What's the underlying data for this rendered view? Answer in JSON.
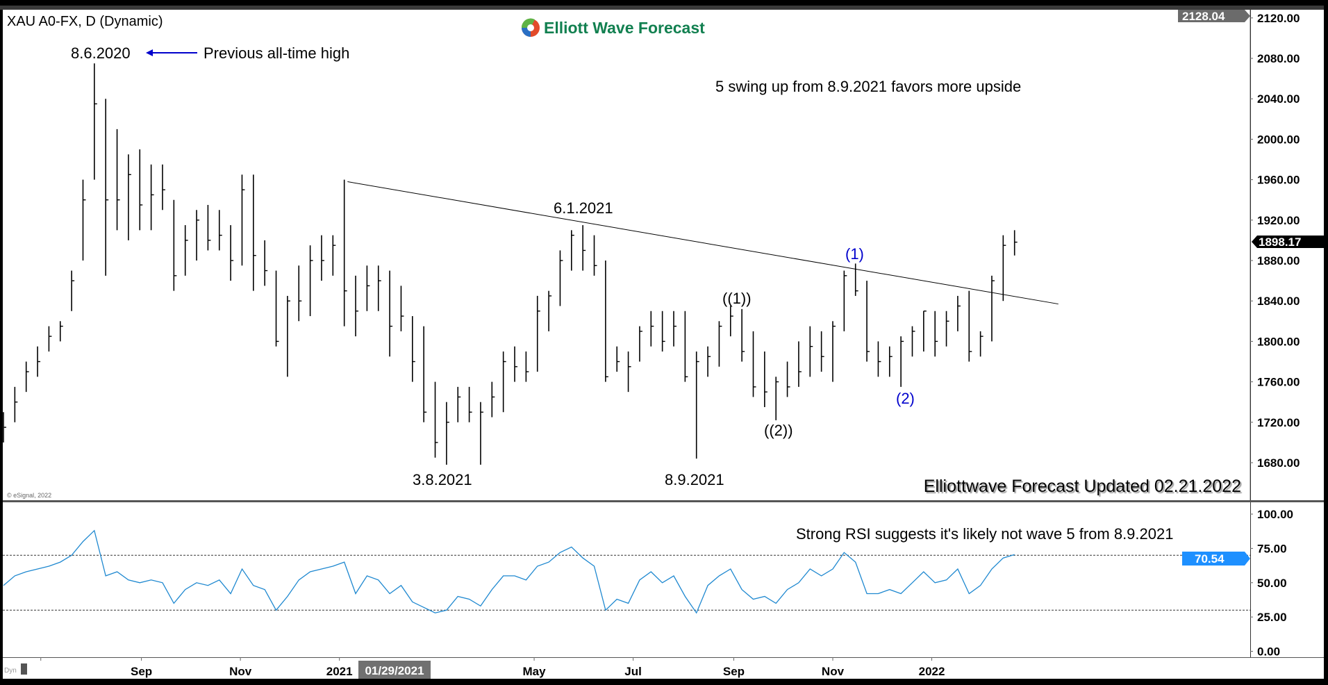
{
  "header": {
    "symbol_title": "XAU A0-FX, D (Dynamic)",
    "logo_text": "Elliott Wave Forecast",
    "copyright": "© eSignal, 2022",
    "corner_label": "Dyn"
  },
  "annotations": {
    "ath_date": "8.6.2020",
    "ath_note": "Previous all-time high",
    "swing_note": "5 swing up from 8.9.2021 favors more upside",
    "label_june": "6.1.2021",
    "label_w1_double": "((1))",
    "label_w1": "(1)",
    "label_w2_double": "((2))",
    "label_w2": "(2)",
    "label_march": "3.8.2021",
    "label_august": "8.9.2021",
    "updated": "Elliottwave Forecast Updated 02.21.2022",
    "rsi_note": "Strong RSI suggests it's likely not wave 5 from 8.9.2021"
  },
  "colors": {
    "bars": "#000000",
    "rsi_line": "#1e88d0",
    "rsi_badge": "#1e90ff",
    "wave_labels": "#0000cc",
    "arrow": "#0000cc",
    "logo_text": "#128050"
  },
  "chart_data": [
    {
      "type": "ohlc",
      "title": "XAU A0-FX, D (Dynamic)",
      "y_ticks": [
        "2120.00",
        "2080.00",
        "2040.00",
        "2000.00",
        "1960.00",
        "1920.00",
        "1880.00",
        "1840.00",
        "1800.00",
        "1760.00",
        "1720.00",
        "1680.00"
      ],
      "ylim": [
        1650,
        2130
      ],
      "top_badge": "2128.04",
      "last_price": "1898.17",
      "x_ticks": [
        "Sep",
        "Nov",
        "2021",
        "May",
        "Jul",
        "Sep",
        "Nov",
        "2022"
      ],
      "x_tick_dates": [
        "2020-09-01",
        "2020-11-01",
        "2021-01-01",
        "2021-05-01",
        "2021-07-01",
        "2021-09-01",
        "2021-11-01",
        "2022-01-01"
      ],
      "cursor_date": "01/29/2021",
      "trendline": [
        [
          "2021-01-06",
          1958
        ],
        [
          "2022-03-20",
          1837
        ]
      ],
      "bars_fields": [
        "date",
        "high",
        "low",
        "close"
      ],
      "bars": [
        [
          "2020-06-08",
          1730,
          1700,
          1715
        ],
        [
          "2020-06-15",
          1755,
          1720,
          1740
        ],
        [
          "2020-06-22",
          1780,
          1750,
          1770
        ],
        [
          "2020-06-29",
          1795,
          1765,
          1780
        ],
        [
          "2020-07-06",
          1815,
          1790,
          1805
        ],
        [
          "2020-07-13",
          1820,
          1800,
          1815
        ],
        [
          "2020-07-20",
          1870,
          1830,
          1860
        ],
        [
          "2020-07-27",
          1960,
          1880,
          1940
        ],
        [
          "2020-08-03",
          2075,
          1960,
          2035
        ],
        [
          "2020-08-10",
          2040,
          1865,
          1940
        ],
        [
          "2020-08-17",
          2010,
          1910,
          1940
        ],
        [
          "2020-08-24",
          1985,
          1900,
          1965
        ],
        [
          "2020-08-31",
          1990,
          1910,
          1935
        ],
        [
          "2020-09-07",
          1975,
          1910,
          1945
        ],
        [
          "2020-09-14",
          1975,
          1930,
          1950
        ],
        [
          "2020-09-21",
          1940,
          1850,
          1865
        ],
        [
          "2020-09-28",
          1915,
          1865,
          1900
        ],
        [
          "2020-10-05",
          1930,
          1880,
          1920
        ],
        [
          "2020-10-12",
          1935,
          1890,
          1900
        ],
        [
          "2020-10-19",
          1930,
          1890,
          1905
        ],
        [
          "2020-10-26",
          1915,
          1860,
          1880
        ],
        [
          "2020-11-02",
          1965,
          1875,
          1950
        ],
        [
          "2020-11-09",
          1965,
          1850,
          1885
        ],
        [
          "2020-11-16",
          1900,
          1855,
          1870
        ],
        [
          "2020-11-23",
          1870,
          1795,
          1800
        ],
        [
          "2020-11-30",
          1845,
          1765,
          1840
        ],
        [
          "2020-12-07",
          1875,
          1820,
          1840
        ],
        [
          "2020-12-14",
          1895,
          1825,
          1880
        ],
        [
          "2020-12-21",
          1905,
          1860,
          1880
        ],
        [
          "2020-12-28",
          1905,
          1865,
          1895
        ],
        [
          "2021-01-04",
          1960,
          1815,
          1850
        ],
        [
          "2021-01-11",
          1865,
          1805,
          1830
        ],
        [
          "2021-01-18",
          1875,
          1830,
          1855
        ],
        [
          "2021-01-25",
          1875,
          1830,
          1860
        ],
        [
          "2021-02-01",
          1870,
          1785,
          1815
        ],
        [
          "2021-02-08",
          1855,
          1810,
          1825
        ],
        [
          "2021-02-15",
          1825,
          1760,
          1780
        ],
        [
          "2021-02-22",
          1815,
          1720,
          1730
        ],
        [
          "2021-03-01",
          1760,
          1685,
          1700
        ],
        [
          "2021-03-08",
          1740,
          1678,
          1720
        ],
        [
          "2021-03-15",
          1755,
          1720,
          1745
        ],
        [
          "2021-03-22",
          1755,
          1720,
          1730
        ],
        [
          "2021-03-29",
          1740,
          1678,
          1730
        ],
        [
          "2021-04-05",
          1760,
          1725,
          1745
        ],
        [
          "2021-04-12",
          1790,
          1730,
          1780
        ],
        [
          "2021-04-19",
          1795,
          1760,
          1775
        ],
        [
          "2021-04-26",
          1790,
          1760,
          1770
        ],
        [
          "2021-05-03",
          1845,
          1770,
          1830
        ],
        [
          "2021-05-10",
          1850,
          1810,
          1845
        ],
        [
          "2021-05-17",
          1890,
          1835,
          1880
        ],
        [
          "2021-05-24",
          1910,
          1870,
          1905
        ],
        [
          "2021-05-31",
          1915,
          1870,
          1890
        ],
        [
          "2021-06-07",
          1905,
          1865,
          1875
        ],
        [
          "2021-06-14",
          1880,
          1760,
          1765
        ],
        [
          "2021-06-21",
          1795,
          1770,
          1780
        ],
        [
          "2021-06-28",
          1790,
          1750,
          1775
        ],
        [
          "2021-07-05",
          1815,
          1780,
          1810
        ],
        [
          "2021-07-12",
          1830,
          1795,
          1815
        ],
        [
          "2021-07-19",
          1830,
          1790,
          1800
        ],
        [
          "2021-07-26",
          1830,
          1795,
          1815
        ],
        [
          "2021-08-02",
          1830,
          1760,
          1765
        ],
        [
          "2021-08-09",
          1790,
          1684,
          1780
        ],
        [
          "2021-08-16",
          1795,
          1765,
          1785
        ],
        [
          "2021-08-23",
          1820,
          1775,
          1815
        ],
        [
          "2021-08-30",
          1835,
          1805,
          1825
        ],
        [
          "2021-09-06",
          1832,
          1780,
          1790
        ],
        [
          "2021-09-13",
          1810,
          1745,
          1755
        ],
        [
          "2021-09-20",
          1790,
          1735,
          1750
        ],
        [
          "2021-09-27",
          1765,
          1722,
          1760
        ],
        [
          "2021-10-04",
          1780,
          1745,
          1755
        ],
        [
          "2021-10-11",
          1800,
          1755,
          1770
        ],
        [
          "2021-10-18",
          1815,
          1765,
          1795
        ],
        [
          "2021-10-25",
          1810,
          1770,
          1785
        ],
        [
          "2021-11-01",
          1820,
          1760,
          1815
        ],
        [
          "2021-11-08",
          1870,
          1810,
          1865
        ],
        [
          "2021-11-15",
          1877,
          1845,
          1850
        ],
        [
          "2021-11-22",
          1860,
          1780,
          1790
        ],
        [
          "2021-11-29",
          1800,
          1765,
          1780
        ],
        [
          "2021-12-06",
          1795,
          1765,
          1785
        ],
        [
          "2021-12-13",
          1805,
          1755,
          1800
        ],
        [
          "2021-12-20",
          1815,
          1785,
          1810
        ],
        [
          "2021-12-27",
          1830,
          1790,
          1830
        ],
        [
          "2022-01-03",
          1830,
          1785,
          1800
        ],
        [
          "2022-01-10",
          1830,
          1795,
          1820
        ],
        [
          "2022-01-17",
          1845,
          1810,
          1835
        ],
        [
          "2022-01-24",
          1850,
          1780,
          1790
        ],
        [
          "2022-01-31",
          1810,
          1785,
          1805
        ],
        [
          "2022-02-07",
          1865,
          1800,
          1860
        ],
        [
          "2022-02-14",
          1905,
          1840,
          1895
        ],
        [
          "2022-02-21",
          1910,
          1885,
          1898.17
        ]
      ]
    },
    {
      "type": "line",
      "name": "RSI",
      "y_ticks": [
        "100.00",
        "75.00",
        "50.00",
        "25.00",
        "0.00"
      ],
      "ylim": [
        0,
        100
      ],
      "reference_lines": [
        70,
        30
      ],
      "last_value": "70.54",
      "values": [
        48,
        55,
        58,
        60,
        62,
        65,
        70,
        80,
        88,
        55,
        58,
        52,
        50,
        52,
        50,
        35,
        45,
        50,
        48,
        52,
        42,
        60,
        48,
        45,
        30,
        40,
        52,
        58,
        60,
        62,
        65,
        42,
        55,
        52,
        42,
        48,
        36,
        32,
        28,
        30,
        40,
        38,
        33,
        45,
        55,
        55,
        52,
        62,
        65,
        72,
        76,
        68,
        62,
        30,
        38,
        35,
        52,
        58,
        50,
        55,
        40,
        28,
        48,
        55,
        60,
        45,
        38,
        40,
        35,
        45,
        50,
        60,
        55,
        60,
        72,
        65,
        42,
        42,
        45,
        42,
        50,
        58,
        50,
        52,
        60,
        42,
        48,
        60,
        68,
        70.54
      ]
    }
  ]
}
